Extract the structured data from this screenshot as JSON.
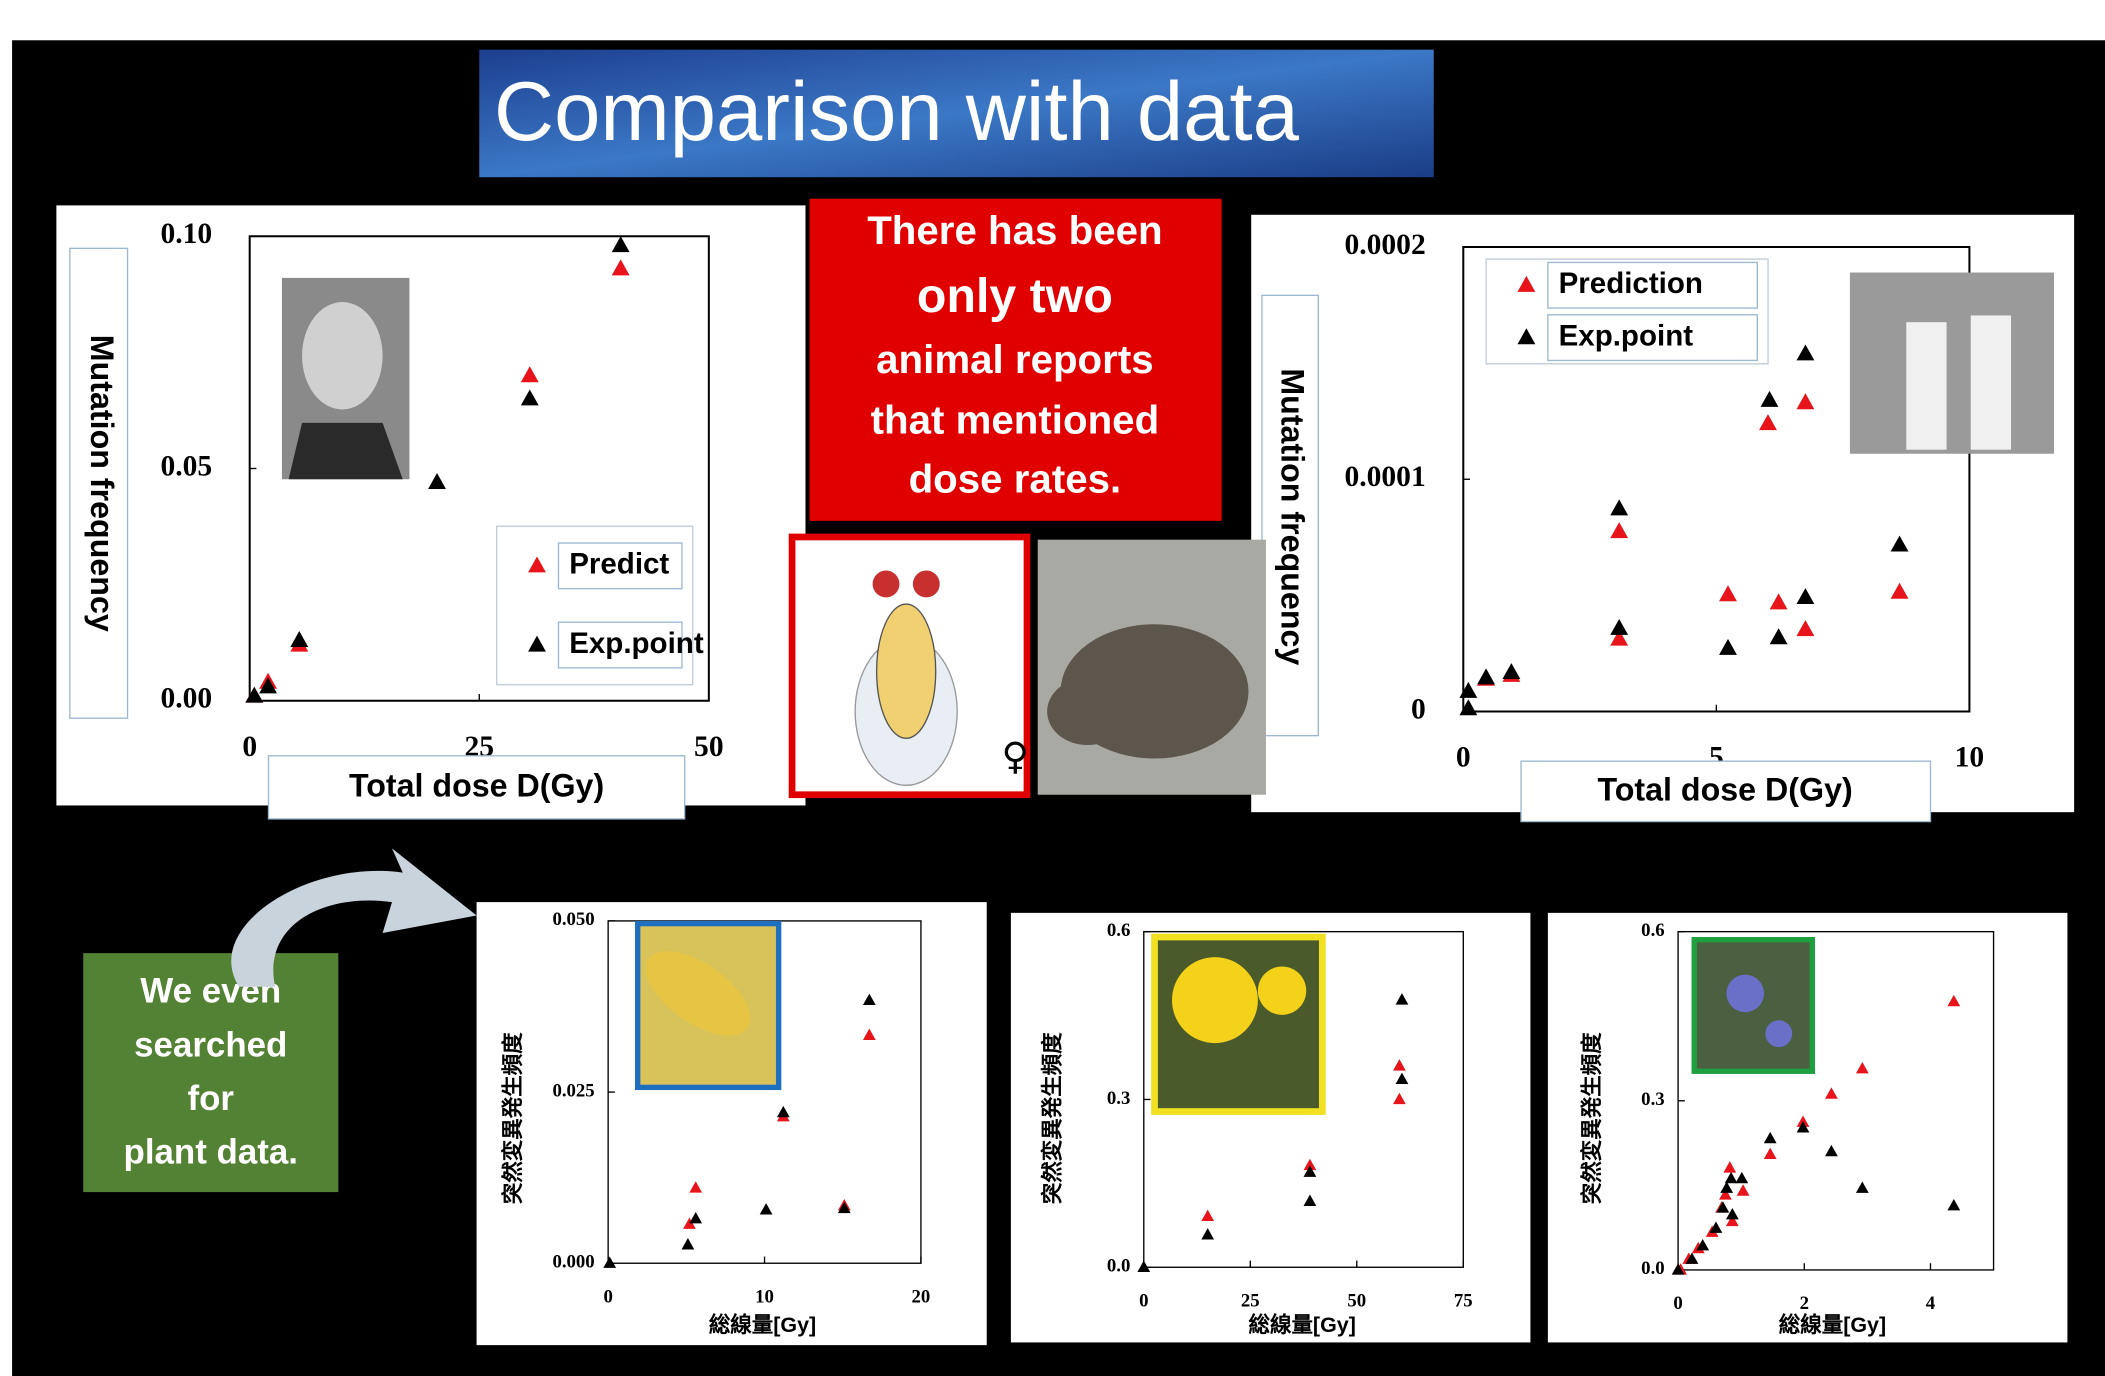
{
  "title": "Comparison with data",
  "callout": [
    "There has been",
    "only two",
    "animal reports",
    "that mentioned",
    "dose rates."
  ],
  "female_symbol": "♀",
  "plant_note": [
    "We even",
    "searched",
    "for",
    "plant data."
  ],
  "chart_data": [
    {
      "type": "scatter",
      "x_label": "Total dose D(Gy)",
      "y_label": "Mutation frequency",
      "xlim": [
        0,
        50
      ],
      "xticks": [
        0,
        25,
        50
      ],
      "ylim": [
        0,
        0.1
      ],
      "yticks": [
        {
          "value": 0,
          "label": "0.00"
        },
        0.05,
        {
          "value": 0.1,
          "label": "0.10"
        }
      ],
      "legend": "lower right",
      "series": [
        {
          "name": "Predict",
          "color": "#e8141c",
          "x": [
            0.5,
            2,
            5.4,
            30.5,
            40.4
          ],
          "values": [
            0.001,
            0.004,
            0.012,
            0.07,
            0.093
          ]
        },
        {
          "name": "Exp.point",
          "color": "#000000",
          "x": [
            0.5,
            2,
            5.4,
            20.4,
            30.5,
            40.4
          ],
          "values": [
            0.001,
            0.003,
            0.013,
            0.047,
            0.065,
            0.098
          ]
        }
      ]
    },
    {
      "type": "scatter",
      "x_label": "Total dose D(Gy)",
      "y_label": "Mutation frequency",
      "xlim": [
        0,
        10
      ],
      "xticks": [
        0,
        5,
        10
      ],
      "ylim": [
        0,
        0.0002
      ],
      "yticks": [
        0,
        0.0001,
        0.0002
      ],
      "legend": "upper left",
      "series": [
        {
          "name": "Prediction",
          "color": "#e8141c",
          "x": [
            0.45,
            0.95,
            3.08,
            3.08,
            5.23,
            6.02,
            6.23,
            6.76,
            6.76,
            8.62
          ],
          "values": [
            1.39e-05,
            1.56e-05,
            7.75e-05,
            3.12e-05,
            5.03e-05,
            0.000124,
            4.68e-05,
            0.000133,
            3.53e-05,
            5.14e-05
          ]
        },
        {
          "name": "Exp.point",
          "color": "#000000",
          "x": [
            0.1,
            0.1,
            0.45,
            0.95,
            3.08,
            3.08,
            5.23,
            6.05,
            6.23,
            6.76,
            6.76,
            8.62
          ],
          "values": [
            1.2e-06,
            8.7e-06,
            1.45e-05,
            1.68e-05,
            8.73e-05,
            3.58e-05,
            2.72e-05,
            0.000134,
            3.18e-05,
            0.000154,
            4.91e-05,
            7.17e-05
          ]
        }
      ]
    },
    {
      "type": "scatter",
      "x_label": "総線量[Gy]",
      "y_label": "突然変異発生頻度",
      "xlim": [
        0,
        20
      ],
      "xticks": [
        0,
        10,
        20
      ],
      "ylim": [
        0,
        0.05
      ],
      "yticks": [
        {
          "value": 0,
          "label": "0.000"
        },
        0.025,
        {
          "value": 0.05,
          "label": "0.050"
        }
      ],
      "series": [
        {
          "color": "#e8141c",
          "x": [
            5.2,
            5.6,
            11.2,
            15.1,
            16.7
          ],
          "values": [
            0.0057,
            0.011,
            0.0214,
            0.0084,
            0.0333
          ]
        },
        {
          "color": "#000000",
          "x": [
            0.1,
            5.1,
            5.6,
            10.1,
            11.2,
            15.1,
            16.7
          ],
          "values": [
            0,
            0.0027,
            0.0065,
            0.0078,
            0.022,
            0.008,
            0.0384
          ]
        }
      ]
    },
    {
      "type": "scatter",
      "x_label": "総線量[Gy]",
      "y_label": "突然変異発生頻度",
      "xlim": [
        0,
        75
      ],
      "xticks": [
        0,
        25,
        50,
        75
      ],
      "ylim": [
        0,
        0.6
      ],
      "yticks": [
        {
          "value": 0,
          "label": "0.0"
        },
        0.3,
        0.6
      ],
      "series": [
        {
          "color": "#e8141c",
          "x": [
            15,
            39,
            60,
            60
          ],
          "values": [
            0.091,
            0.182,
            0.36,
            0.3
          ]
        },
        {
          "color": "#000000",
          "x": [
            0,
            15,
            39,
            39,
            60.6,
            60.6
          ],
          "values": [
            0,
            0.058,
            0.17,
            0.118,
            0.478,
            0.336
          ]
        }
      ]
    },
    {
      "type": "scatter",
      "x_label": "総線量[Gy]",
      "y_label": "突然変異発生頻度",
      "xlim": [
        0,
        5
      ],
      "xticks": [
        0,
        2,
        4
      ],
      "ylim": [
        0,
        0.6
      ],
      "yticks": [
        {
          "value": 0,
          "label": "0.0"
        },
        0.3,
        0.6
      ],
      "series": [
        {
          "color": "#e8141c",
          "x": [
            0.04,
            0.17,
            0.32,
            0.54,
            0.69,
            0.75,
            0.82,
            0.86,
            1.03,
            1.46,
            1.98,
            2.43,
            2.92,
            4.37
          ],
          "values": [
            0,
            0.019,
            0.038,
            0.067,
            0.11,
            0.133,
            0.181,
            0.086,
            0.14,
            0.205,
            0.262,
            0.312,
            0.357,
            0.476
          ]
        },
        {
          "color": "#000000",
          "x": [
            0,
            0.22,
            0.39,
            0.6,
            0.71,
            0.77,
            0.84,
            0.86,
            1.01,
            1.46,
            1.98,
            2.43,
            2.92,
            4.37
          ],
          "values": [
            0,
            0.019,
            0.043,
            0.074,
            0.11,
            0.145,
            0.162,
            0.098,
            0.162,
            0.233,
            0.252,
            0.21,
            0.145,
            0.114
          ]
        }
      ]
    }
  ]
}
